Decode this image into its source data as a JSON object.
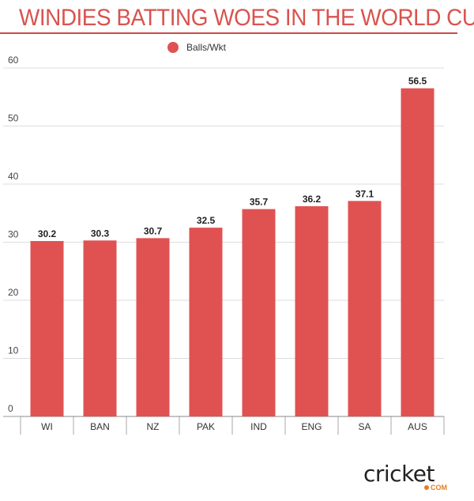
{
  "chart_data": {
    "type": "bar",
    "title": "WINDIES BATTING WOES IN THE WORLD CUP",
    "categories": [
      "WI",
      "BAN",
      "NZ",
      "PAK",
      "IND",
      "ENG",
      "SA",
      "AUS"
    ],
    "series": [
      {
        "name": "Balls/Wkt",
        "values": [
          30.2,
          30.3,
          30.7,
          32.5,
          35.7,
          36.2,
          37.1,
          56.5
        ]
      }
    ],
    "ylim": [
      0,
      60
    ],
    "yticks": [
      0,
      10,
      20,
      30,
      40,
      50,
      60
    ],
    "grid": true,
    "legend": "top-center",
    "xlabel": "",
    "ylabel": "",
    "bar_color": "#e05252"
  },
  "branding": {
    "logo": "cricket",
    "logo_sub": "COM"
  }
}
